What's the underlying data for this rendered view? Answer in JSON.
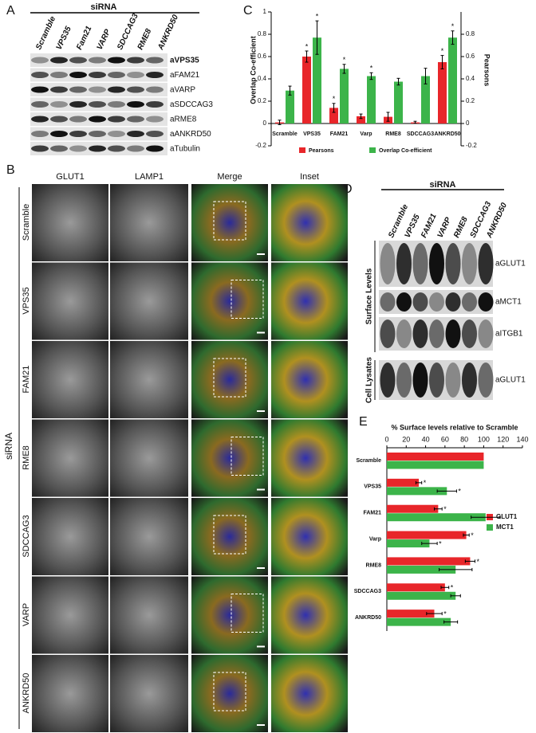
{
  "panel_labels": [
    "A",
    "B",
    "C",
    "D",
    "E"
  ],
  "panel_a": {
    "header": "siRNA",
    "lanes": [
      "Scramble",
      "VPS35",
      "Fam21",
      "VARP",
      "SDCCAG3",
      "RME8",
      "ANKRD50"
    ],
    "blots": [
      "aVPS35",
      "aFAM21",
      "aVARP",
      "aSDCCAG3",
      "aRME8",
      "aANKRD50",
      "aTubulin"
    ]
  },
  "panel_b": {
    "side_label": "siRNA",
    "columns": [
      "GLUT1",
      "LAMP1",
      "Merge",
      "Inset"
    ],
    "rows": [
      "Scramble",
      "VPS35",
      "FAM21",
      "RME8",
      "SDCCAG3",
      "VARP",
      "ANKRD50"
    ]
  },
  "panel_d": {
    "header": "siRNA",
    "lanes": [
      "Scramble",
      "VPS35",
      "FAM21",
      "VARP",
      "RME8",
      "SDCCAG3",
      "ANKRD50"
    ],
    "groups": [
      "Surface Levels",
      "Cell Lysates"
    ],
    "blots": [
      "aGLUT1",
      "aMCT1",
      "aITGB1",
      "aGLUT1"
    ]
  },
  "chart_data": [
    {
      "type": "bar",
      "ylabel": "Overlap Co-efficient",
      "y2label": "Pearsons",
      "categories": [
        "Scramble",
        "VPS35",
        "FAM21",
        "Varp",
        "RME8",
        "SDCCAG3",
        "ANKRD50"
      ],
      "series": [
        {
          "name": "Pearsons",
          "color": "#e8262a",
          "axis": "y2",
          "values": [
            0.01,
            0.6,
            0.14,
            0.065,
            0.06,
            0.01,
            0.55
          ],
          "errors": [
            0.02,
            0.05,
            0.04,
            0.02,
            0.04,
            0.01,
            0.06
          ],
          "markers": [
            null,
            "*",
            "*",
            null,
            null,
            null,
            "*"
          ]
        },
        {
          "name": "Overlap Co-efficient",
          "color": "#3cb44a",
          "values": [
            0.295,
            0.77,
            0.49,
            0.425,
            0.375,
            0.425,
            0.77
          ],
          "errors": [
            0.04,
            0.15,
            0.04,
            0.03,
            0.03,
            0.07,
            0.06
          ],
          "markers": [
            null,
            "*",
            "*",
            "*",
            null,
            null,
            "*"
          ]
        }
      ],
      "ylim": [
        -0.2,
        1
      ],
      "yticks": [
        -0.2,
        0,
        0.2,
        0.4,
        0.6,
        0.8,
        1
      ],
      "y2lim": [
        -0.2,
        1
      ],
      "y2ticks": [
        -0.2,
        0,
        0.2,
        0.4,
        0.6,
        0.8
      ],
      "legend": "bottom"
    },
    {
      "type": "hbar",
      "title": "% Surface levels relative to Scramble",
      "categories": [
        "Scramble",
        "VPS35",
        "FAM21",
        "Varp",
        "RME8",
        "SDCCAG3",
        "ANKRD50"
      ],
      "series": [
        {
          "name": "GLUT1",
          "color": "#e8262a",
          "values": [
            100,
            33,
            53,
            82,
            86,
            60,
            49
          ],
          "errors": [
            0,
            3,
            4,
            3,
            5,
            4,
            8
          ],
          "markers": [
            null,
            "*",
            "*",
            "*",
            "*",
            "*",
            "*"
          ]
        },
        {
          "name": "MCT1",
          "color": "#3cb44a",
          "values": [
            100,
            62,
            102,
            44,
            71,
            71,
            66
          ],
          "errors": [
            0,
            10,
            15,
            8,
            17,
            5,
            7
          ],
          "markers": [
            null,
            "*",
            null,
            "*",
            null,
            null,
            null
          ]
        }
      ],
      "xlim": [
        0,
        140
      ],
      "xticks": [
        0,
        20,
        40,
        60,
        80,
        100,
        120,
        140
      ],
      "legend": "right"
    }
  ]
}
